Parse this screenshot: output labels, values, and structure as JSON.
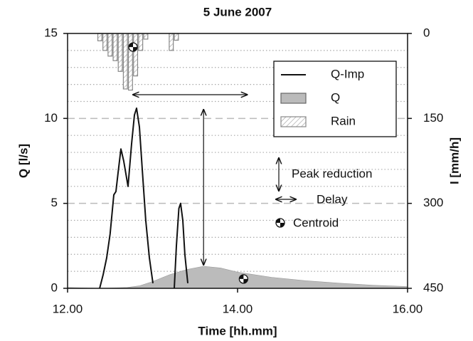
{
  "chart_data": {
    "type": "line",
    "title": "5 June 2007",
    "xlabel": "Time [hh.mm]",
    "ylabel": "Q [l/s]",
    "y2label": "I [mm/h]",
    "xlim": [
      12,
      16
    ],
    "xticks": [
      {
        "value": 12,
        "label": "12.00"
      },
      {
        "value": 14,
        "label": "14.00"
      },
      {
        "value": 16,
        "label": "16.00"
      }
    ],
    "ylim": [
      0,
      15
    ],
    "yticks": [
      0,
      5,
      10,
      15
    ],
    "yminorticks": [
      1,
      2,
      3,
      4,
      6,
      7,
      8,
      9,
      11,
      12,
      13,
      14
    ],
    "y2lim": [
      0,
      450
    ],
    "y2ticks": [
      0,
      150,
      300,
      450
    ],
    "y2_inverted": true,
    "grid": true,
    "legend": "upper right",
    "series": [
      {
        "name": "Q-Imp",
        "type": "line",
        "color": "#111111",
        "x": [
          12.377,
          12.418,
          12.46,
          12.5,
          12.544,
          12.569,
          12.594,
          12.628,
          12.66,
          12.711,
          12.753,
          12.787,
          12.812,
          12.845,
          12.879,
          12.92,
          12.962,
          13.004,
          13.1,
          13.255,
          13.28,
          13.31,
          13.33,
          13.356,
          13.38,
          13.414
        ],
        "values": [
          0,
          0.8,
          1.8,
          3.2,
          5.5,
          5.7,
          6.8,
          8.2,
          7.5,
          6.0,
          8.5,
          10.2,
          10.6,
          9.5,
          7.0,
          4.0,
          1.8,
          0.3,
          null,
          0,
          2.5,
          4.7,
          5.0,
          4.0,
          2.0,
          0.3
        ]
      },
      {
        "name": "Q",
        "type": "area",
        "color": "#bbbbbb",
        "x": [
          12.0,
          12.4,
          12.7,
          12.85,
          13.0,
          13.2,
          13.4,
          13.6,
          13.8,
          14.0,
          14.4,
          14.8,
          15.2,
          15.6,
          16.0
        ],
        "values": [
          0.05,
          0.0,
          0.05,
          0.15,
          0.4,
          0.8,
          1.1,
          1.3,
          1.2,
          0.95,
          0.65,
          0.45,
          0.3,
          0.18,
          0.1
        ]
      },
      {
        "name": "Rain",
        "type": "bar",
        "axis": "y2",
        "color": "#888888",
        "x": [
          12.38,
          12.44,
          12.5,
          12.56,
          12.62,
          12.68,
          12.74,
          12.8,
          12.86,
          12.92,
          13.22,
          13.28
        ],
        "values": [
          13,
          30,
          40,
          48,
          67,
          98,
          100,
          75,
          30,
          10,
          30,
          12
        ]
      }
    ],
    "centroids": [
      {
        "x": 12.77,
        "value": 24,
        "axis": "y2"
      },
      {
        "x": 14.07,
        "value": 0.55
      }
    ],
    "annotations": [
      "Peak reduction",
      "Delay",
      "Centroid"
    ]
  }
}
